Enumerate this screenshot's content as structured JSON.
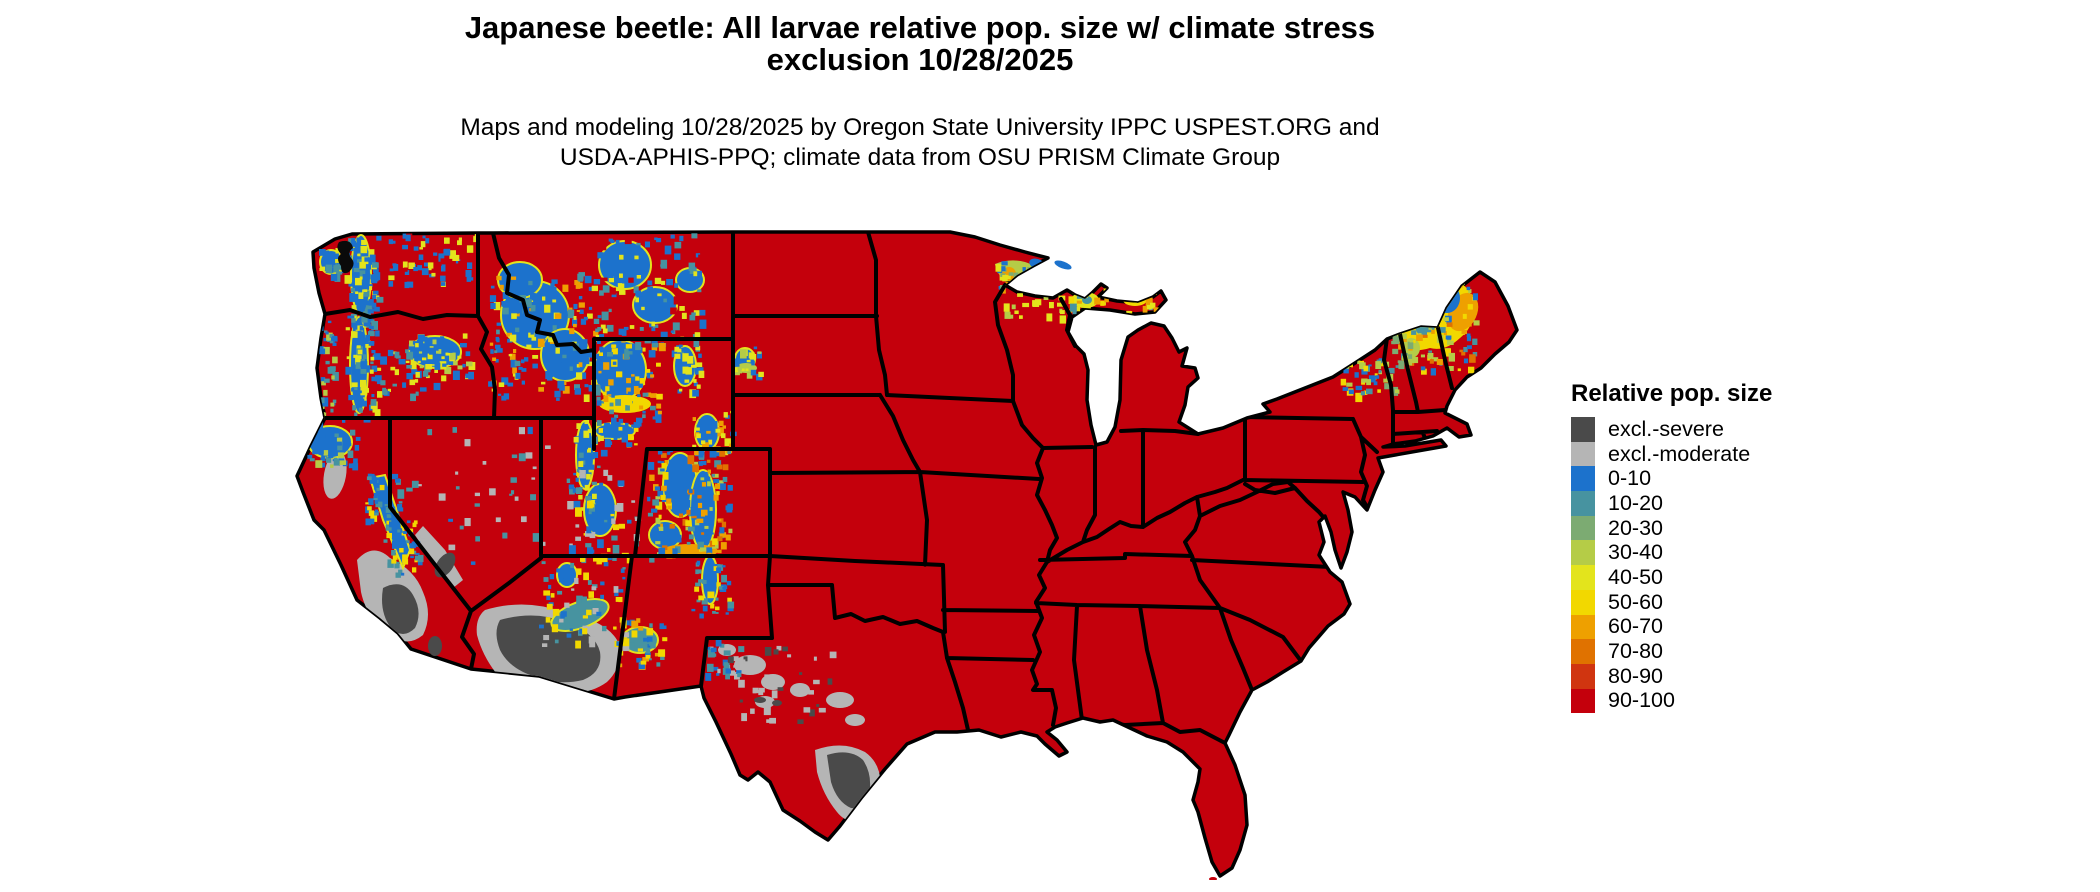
{
  "title": {
    "line1": "Japanese beetle: All larvae relative pop. size w/ climate stress",
    "line2": "exclusion 10/28/2025"
  },
  "subtitle": {
    "line1": "Maps and modeling 10/28/2025 by Oregon State University IPPC USPEST.ORG and",
    "line2": "USDA-APHIS-PPQ; climate data from OSU PRISM Climate Group"
  },
  "legend": {
    "title": "Relative pop. size",
    "items": [
      {
        "label": "excl.-severe",
        "color": "#4A4A4A"
      },
      {
        "label": "excl.-moderate",
        "color": "#B5B5B5"
      },
      {
        "label": "0-10",
        "color": "#1C72CC"
      },
      {
        "label": "10-20",
        "color": "#4793A0"
      },
      {
        "label": "20-30",
        "color": "#7CAB72"
      },
      {
        "label": "30-40",
        "color": "#B5CC47"
      },
      {
        "label": "40-50",
        "color": "#E3E41C"
      },
      {
        "label": "50-60",
        "color": "#F2D800"
      },
      {
        "label": "60-70",
        "color": "#EEA000"
      },
      {
        "label": "70-80",
        "color": "#E07200"
      },
      {
        "label": "80-90",
        "color": "#D03510"
      },
      {
        "label": "90-100",
        "color": "#C4000C"
      }
    ]
  },
  "map": {
    "region": "contiguous United States",
    "dominant_class": "90-100",
    "dominant_fill": "#C4000C",
    "border_color": "#000000",
    "background": "#FFFFFF"
  }
}
